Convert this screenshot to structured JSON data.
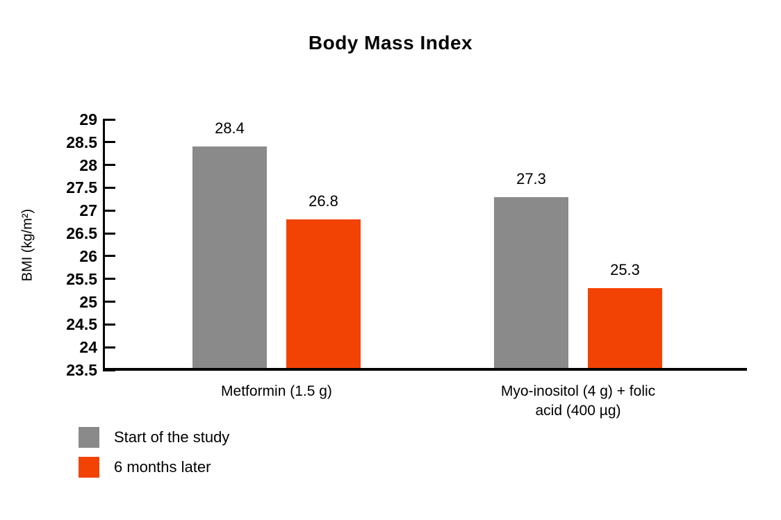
{
  "chart_data": {
    "type": "bar",
    "title": "Body Mass Index",
    "xlabel": "",
    "ylabel": "BMI (kg/m²)",
    "ylim": [
      23.5,
      29
    ],
    "yticks": [
      "23.5",
      "24",
      "24.5",
      "25",
      "25.5",
      "26",
      "26.5",
      "27",
      "27.5",
      "28",
      "28.5",
      "29"
    ],
    "grid": false,
    "legend_position": "bottom-left",
    "categories": [
      {
        "name": "Metformin (1.5 g)",
        "lines": [
          "Metformin (1.5 g)"
        ]
      },
      {
        "name": "Myo-inositol (4 g) + folic acid (400 µg)",
        "lines": [
          "Myo-inositol (4 g) + folic",
          "acid (400 µg)"
        ]
      }
    ],
    "series": [
      {
        "name": "Start of the study",
        "color": "#8a8a8a",
        "values": [
          28.4,
          27.3
        ],
        "value_labels": [
          "28.4",
          "27.3"
        ]
      },
      {
        "name": "6 months later",
        "color": "#f24305",
        "values": [
          26.8,
          25.3
        ],
        "value_labels": [
          "26.8",
          "25.3"
        ]
      }
    ],
    "colors": {
      "axis": "#000000",
      "text": "#000000",
      "background": "#ffffff"
    }
  }
}
